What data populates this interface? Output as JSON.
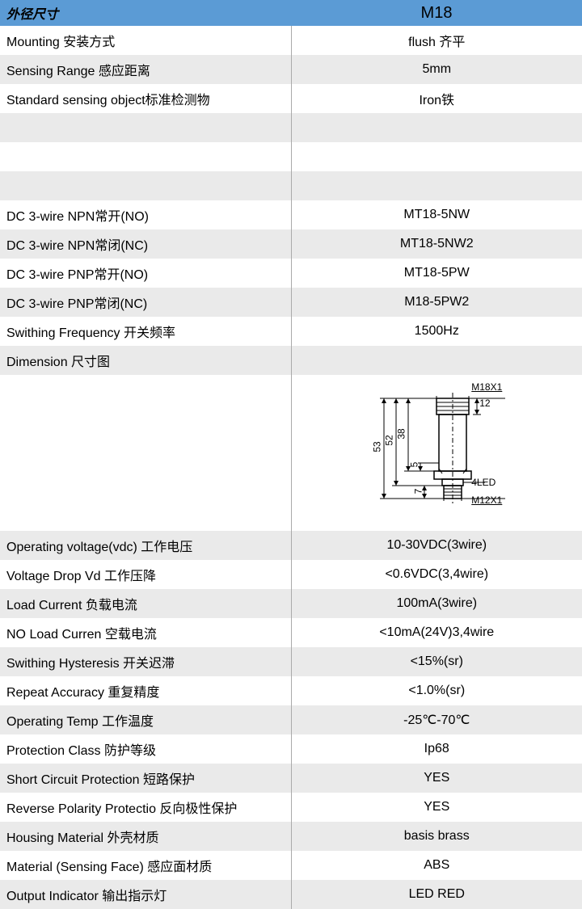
{
  "header": {
    "label": "外径尺寸",
    "value": "M18"
  },
  "rows_top": [
    {
      "label": "Mounting 安装方式",
      "value": "flush   齐平",
      "parity": "even"
    },
    {
      "label": "Sensing Range 感应距离",
      "value": "5mm",
      "parity": "odd"
    },
    {
      "label": "Standard sensing object标准检测物",
      "value": "Iron铁",
      "parity": "even"
    },
    {
      "label": "",
      "value": "",
      "parity": "odd"
    },
    {
      "label": "",
      "value": "",
      "parity": "even"
    },
    {
      "label": "",
      "value": "",
      "parity": "odd"
    },
    {
      "label": "DC 3-wire NPN常开(NO)",
      "value": "MT18-5NW",
      "parity": "even"
    },
    {
      "label": "DC 3-wire NPN常闭(NC)",
      "value": "MT18-5NW2",
      "parity": "odd"
    },
    {
      "label": "DC 3-wire PNP常开(NO)",
      "value": "MT18-5PW",
      "parity": "even"
    },
    {
      "label": "DC 3-wire PNP常闭(NC)",
      "value": "M18-5PW2",
      "parity": "odd"
    },
    {
      "label": "Swithing Frequency 开关频率",
      "value": "1500Hz",
      "parity": "even"
    },
    {
      "label": "Dimension 尺寸图",
      "value": "",
      "parity": "odd"
    }
  ],
  "diagram": {
    "top_label": "M18X1",
    "bottom_label": "M12X1",
    "led_label": "4LED",
    "dims": {
      "d53": "53",
      "d52": "52",
      "d38": "38",
      "d12": "12",
      "d5": "5",
      "d7": "7"
    }
  },
  "rows_bottom": [
    {
      "label": "Operating voltage(vdc) 工作电压",
      "value": "10-30VDC(3wire)",
      "parity": "odd"
    },
    {
      "label": "Voltage Drop Vd 工作压降",
      "value": "<0.6VDC(3,4wire)",
      "parity": "even"
    },
    {
      "label": "Load Current 负载电流",
      "value": "100mA(3wire)",
      "parity": "odd"
    },
    {
      "label": "NO Load Curren 空载电流",
      "value": "<10mA(24V)3,4wire",
      "parity": "even"
    },
    {
      "label": "Swithing Hysteresis 开关迟滞",
      "value": "<15%(sr)",
      "parity": "odd"
    },
    {
      "label": "Repeat Accuracy 重复精度",
      "value": "<1.0%(sr)",
      "parity": "even"
    },
    {
      "label": "Operating Temp 工作温度",
      "value": "-25℃-70℃",
      "parity": "odd"
    },
    {
      "label": "Protection Class 防护等级",
      "value": "Ip68",
      "parity": "even"
    },
    {
      "label": "Short Circuit Protection 短路保护",
      "value": "YES",
      "parity": "odd"
    },
    {
      "label": "Reverse Polarity Protectio 反向极性保护",
      "value": "YES",
      "parity": "even"
    },
    {
      "label": "Housing Material 外壳材质",
      "value": "basis brass",
      "parity": "odd"
    },
    {
      "label": "Material (Sensing Face) 感应面材质",
      "value": "ABS",
      "parity": "even"
    },
    {
      "label": "Output Indicator 输出指示灯",
      "value": "LED RED",
      "parity": "odd"
    }
  ],
  "colors": {
    "header_bg": "#5b9bd5",
    "odd_bg": "#eaeaea",
    "even_bg": "#ffffff",
    "divider": "#aaaaaa"
  }
}
